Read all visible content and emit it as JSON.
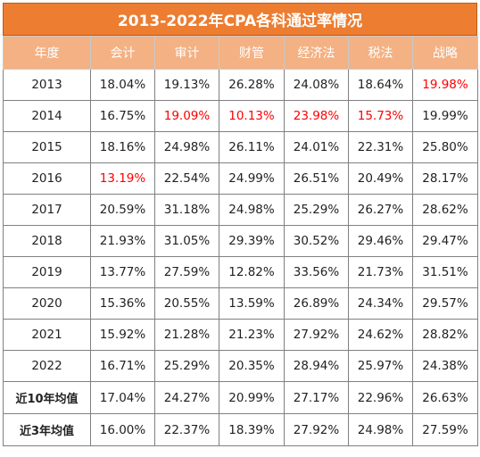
{
  "chart_data": {
    "type": "table",
    "title": "2013-2022年CPA各科通过率情况",
    "columns": [
      "年度",
      "会计",
      "审计",
      "财管",
      "经济法",
      "税法",
      "战略"
    ],
    "rows": [
      {
        "label": "2013",
        "values": [
          "18.04%",
          "19.13%",
          "26.28%",
          "24.08%",
          "18.64%",
          "19.98%"
        ],
        "highlight": [
          false,
          false,
          false,
          false,
          false,
          true
        ]
      },
      {
        "label": "2014",
        "values": [
          "16.75%",
          "19.09%",
          "10.13%",
          "23.98%",
          "15.73%",
          "19.99%"
        ],
        "highlight": [
          false,
          true,
          true,
          true,
          true,
          false
        ]
      },
      {
        "label": "2015",
        "values": [
          "18.16%",
          "24.98%",
          "26.11%",
          "24.01%",
          "22.31%",
          "25.80%"
        ],
        "highlight": [
          false,
          false,
          false,
          false,
          false,
          false
        ]
      },
      {
        "label": "2016",
        "values": [
          "13.19%",
          "22.54%",
          "24.99%",
          "26.51%",
          "20.49%",
          "28.17%"
        ],
        "highlight": [
          true,
          false,
          false,
          false,
          false,
          false
        ]
      },
      {
        "label": "2017",
        "values": [
          "20.59%",
          "31.18%",
          "24.98%",
          "25.29%",
          "26.27%",
          "28.62%"
        ],
        "highlight": [
          false,
          false,
          false,
          false,
          false,
          false
        ]
      },
      {
        "label": "2018",
        "values": [
          "21.93%",
          "31.05%",
          "29.39%",
          "30.52%",
          "29.46%",
          "29.47%"
        ],
        "highlight": [
          false,
          false,
          false,
          false,
          false,
          false
        ]
      },
      {
        "label": "2019",
        "values": [
          "13.77%",
          "27.59%",
          "12.82%",
          "33.56%",
          "21.73%",
          "31.51%"
        ],
        "highlight": [
          false,
          false,
          false,
          false,
          false,
          false
        ]
      },
      {
        "label": "2020",
        "values": [
          "15.36%",
          "20.55%",
          "13.59%",
          "26.89%",
          "24.34%",
          "29.57%"
        ],
        "highlight": [
          false,
          false,
          false,
          false,
          false,
          false
        ]
      },
      {
        "label": "2021",
        "values": [
          "15.92%",
          "21.28%",
          "21.23%",
          "27.92%",
          "24.62%",
          "28.82%"
        ],
        "highlight": [
          false,
          false,
          false,
          false,
          false,
          false
        ]
      },
      {
        "label": "2022",
        "values": [
          "16.71%",
          "25.29%",
          "20.35%",
          "28.94%",
          "25.97%",
          "24.38%"
        ],
        "highlight": [
          false,
          false,
          false,
          false,
          false,
          false
        ]
      },
      {
        "label": "近10年均值",
        "values": [
          "17.04%",
          "24.27%",
          "20.99%",
          "27.17%",
          "22.96%",
          "26.63%"
        ],
        "highlight": [
          false,
          false,
          false,
          false,
          false,
          false
        ],
        "bold": true
      },
      {
        "label": "近3年均值",
        "values": [
          "16.00%",
          "22.37%",
          "18.39%",
          "27.92%",
          "24.98%",
          "27.59%"
        ],
        "highlight": [
          false,
          false,
          false,
          false,
          false,
          false
        ],
        "bold": true
      }
    ]
  },
  "colors": {
    "title_bg": "#ed7d31",
    "header_bg": "#f4b183",
    "highlight_text": "#ff0000"
  }
}
